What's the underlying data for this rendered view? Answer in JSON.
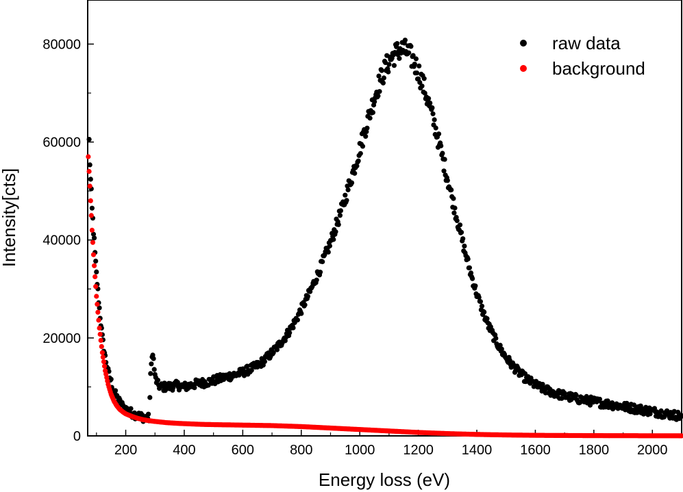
{
  "chart_data": {
    "type": "scatter",
    "title": "",
    "xlabel": "Energy loss (eV)",
    "ylabel": "Intensity[cts]",
    "xlim": [
      70,
      2100
    ],
    "ylim": [
      0,
      89000
    ],
    "xticks": [
      200,
      400,
      600,
      800,
      1000,
      1200,
      1400,
      1600,
      1800,
      2000
    ],
    "yticks": [
      0,
      20000,
      40000,
      60000,
      80000
    ],
    "grid": false,
    "legend_position": "top-right",
    "series": [
      {
        "name": "raw data",
        "color": "#000000",
        "points": [
          [
            75,
            60000
          ],
          [
            80,
            52000
          ],
          [
            85,
            46000
          ],
          [
            90,
            42000
          ],
          [
            95,
            37000
          ],
          [
            100,
            33000
          ],
          [
            110,
            26000
          ],
          [
            120,
            20000
          ],
          [
            130,
            16000
          ],
          [
            140,
            13000
          ],
          [
            150,
            11000
          ],
          [
            160,
            9000
          ],
          [
            170,
            7800
          ],
          [
            180,
            6800
          ],
          [
            190,
            6000
          ],
          [
            200,
            5500
          ],
          [
            210,
            5000
          ],
          [
            220,
            4700
          ],
          [
            230,
            4400
          ],
          [
            240,
            4200
          ],
          [
            250,
            4000
          ],
          [
            260,
            3800
          ],
          [
            270,
            3700
          ],
          [
            280,
            3600
          ],
          [
            285,
            12000
          ],
          [
            290,
            17000
          ],
          [
            295,
            15500
          ],
          [
            300,
            12000
          ],
          [
            310,
            10500
          ],
          [
            320,
            10000
          ],
          [
            340,
            10000
          ],
          [
            360,
            10200
          ],
          [
            380,
            10300
          ],
          [
            400,
            10000
          ],
          [
            420,
            10300
          ],
          [
            440,
            10600
          ],
          [
            460,
            10800
          ],
          [
            480,
            11000
          ],
          [
            500,
            11300
          ],
          [
            520,
            11600
          ],
          [
            540,
            12000
          ],
          [
            560,
            12300
          ],
          [
            580,
            12600
          ],
          [
            600,
            13000
          ],
          [
            620,
            13500
          ],
          [
            640,
            14000
          ],
          [
            660,
            14800
          ],
          [
            680,
            15800
          ],
          [
            700,
            17000
          ],
          [
            720,
            18300
          ],
          [
            740,
            19800
          ],
          [
            760,
            21500
          ],
          [
            780,
            23500
          ],
          [
            800,
            25800
          ],
          [
            820,
            28200
          ],
          [
            840,
            30800
          ],
          [
            860,
            33500
          ],
          [
            880,
            36500
          ],
          [
            900,
            39500
          ],
          [
            920,
            43000
          ],
          [
            940,
            46500
          ],
          [
            960,
            50500
          ],
          [
            980,
            54500
          ],
          [
            1000,
            58500
          ],
          [
            1020,
            63000
          ],
          [
            1040,
            67000
          ],
          [
            1060,
            71000
          ],
          [
            1080,
            74000
          ],
          [
            1100,
            76500
          ],
          [
            1120,
            78000
          ],
          [
            1140,
            79000
          ],
          [
            1160,
            78500
          ],
          [
            1180,
            77000
          ],
          [
            1200,
            74500
          ],
          [
            1220,
            71000
          ],
          [
            1240,
            67000
          ],
          [
            1260,
            62500
          ],
          [
            1280,
            57500
          ],
          [
            1300,
            52500
          ],
          [
            1320,
            47500
          ],
          [
            1340,
            42500
          ],
          [
            1360,
            37500
          ],
          [
            1380,
            33000
          ],
          [
            1400,
            29000
          ],
          [
            1420,
            25500
          ],
          [
            1440,
            22500
          ],
          [
            1460,
            20000
          ],
          [
            1480,
            17800
          ],
          [
            1500,
            16000
          ],
          [
            1520,
            14500
          ],
          [
            1540,
            13200
          ],
          [
            1560,
            12100
          ],
          [
            1580,
            11200
          ],
          [
            1600,
            10400
          ],
          [
            1620,
            9800
          ],
          [
            1640,
            9300
          ],
          [
            1660,
            8900
          ],
          [
            1680,
            8500
          ],
          [
            1700,
            8200
          ],
          [
            1720,
            7900
          ],
          [
            1740,
            7600
          ],
          [
            1760,
            7400
          ],
          [
            1780,
            7200
          ],
          [
            1800,
            7000
          ],
          [
            1820,
            6800
          ],
          [
            1840,
            6600
          ],
          [
            1860,
            6400
          ],
          [
            1880,
            6200
          ],
          [
            1900,
            6000
          ],
          [
            1920,
            5800
          ],
          [
            1940,
            5600
          ],
          [
            1960,
            5400
          ],
          [
            1980,
            5200
          ],
          [
            2000,
            5000
          ],
          [
            2020,
            4800
          ],
          [
            2040,
            4600
          ],
          [
            2060,
            4400
          ],
          [
            2080,
            4200
          ],
          [
            2100,
            4000
          ]
        ]
      },
      {
        "name": "background",
        "color": "#ff0000",
        "points": [
          [
            72,
            57000
          ],
          [
            75,
            54000
          ],
          [
            80,
            48000
          ],
          [
            85,
            42000
          ],
          [
            90,
            37000
          ],
          [
            95,
            32500
          ],
          [
            100,
            28500
          ],
          [
            110,
            22000
          ],
          [
            120,
            17000
          ],
          [
            130,
            13300
          ],
          [
            140,
            10500
          ],
          [
            150,
            8500
          ],
          [
            160,
            7100
          ],
          [
            170,
            6100
          ],
          [
            180,
            5400
          ],
          [
            190,
            4900
          ],
          [
            200,
            4500
          ],
          [
            220,
            4000
          ],
          [
            240,
            3600
          ],
          [
            260,
            3300
          ],
          [
            280,
            3100
          ],
          [
            300,
            2950
          ],
          [
            340,
            2700
          ],
          [
            380,
            2550
          ],
          [
            420,
            2450
          ],
          [
            460,
            2350
          ],
          [
            500,
            2300
          ],
          [
            550,
            2250
          ],
          [
            600,
            2200
          ],
          [
            650,
            2150
          ],
          [
            700,
            2100
          ],
          [
            750,
            2000
          ],
          [
            800,
            1900
          ],
          [
            850,
            1750
          ],
          [
            900,
            1600
          ],
          [
            950,
            1450
          ],
          [
            1000,
            1300
          ],
          [
            1050,
            1150
          ],
          [
            1100,
            1000
          ],
          [
            1150,
            850
          ],
          [
            1200,
            700
          ],
          [
            1250,
            580
          ],
          [
            1300,
            470
          ],
          [
            1350,
            380
          ],
          [
            1400,
            300
          ],
          [
            1450,
            240
          ],
          [
            1500,
            190
          ],
          [
            1550,
            150
          ],
          [
            1600,
            120
          ],
          [
            1650,
            95
          ],
          [
            1700,
            80
          ],
          [
            1750,
            65
          ],
          [
            1800,
            55
          ],
          [
            1850,
            45
          ],
          [
            1900,
            40
          ],
          [
            1950,
            35
          ],
          [
            2000,
            30
          ],
          [
            2050,
            25
          ],
          [
            2100,
            20
          ]
        ]
      }
    ]
  }
}
